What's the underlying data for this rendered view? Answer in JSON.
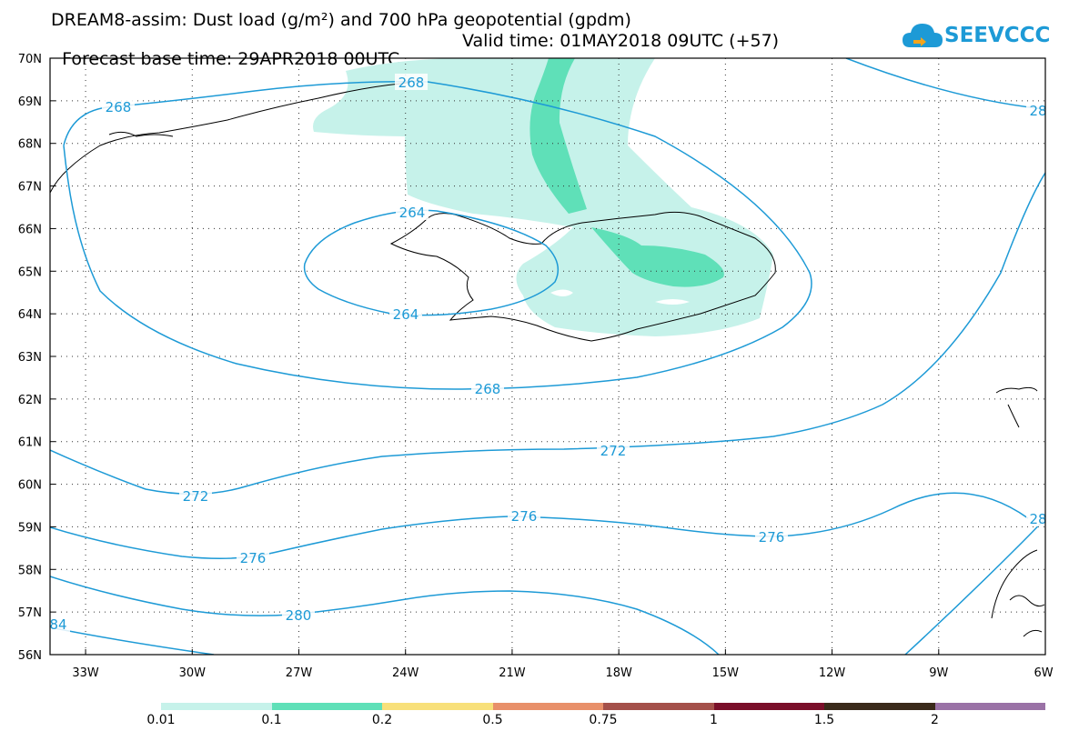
{
  "title_line1": "DREAM8-assim: Dust load (g/m²) and 700 hPa geopotential (gpdm)",
  "title_base": "Forecast base time: 29APR2018 00UTC",
  "title_valid": "Valid time: 01MAY2018 09UTC (+57)",
  "logo_text": "SEEVCCC",
  "map": {
    "lon_range": [
      -34,
      -6
    ],
    "lat_range": [
      56,
      70
    ],
    "lon_ticks": [
      "33W",
      "30W",
      "27W",
      "24W",
      "21W",
      "18W",
      "15W",
      "12W",
      "9W",
      "6W"
    ],
    "lat_ticks": [
      "70N",
      "69N",
      "68N",
      "67N",
      "66N",
      "65N",
      "64N",
      "63N",
      "62N",
      "61N",
      "60N",
      "59N",
      "58N",
      "57N",
      "56N"
    ],
    "gridlines": true,
    "contour_color": "#1d9ad6",
    "contour_labels": [
      "268",
      "268",
      "264",
      "264",
      "268",
      "272",
      "272",
      "276",
      "276",
      "276",
      "280",
      "28",
      "28",
      "84"
    ]
  },
  "colorbar": {
    "colors": [
      "#c6f2ea",
      "#5fe0b8",
      "#f8e07a",
      "#e8906a",
      "#a4504a",
      "#7a0f2a",
      "#3a2a1a",
      "#9a72a6"
    ],
    "labels": [
      "0.01",
      "0.1",
      "0.2",
      "0.5",
      "0.75",
      "1",
      "1.5",
      "2"
    ]
  }
}
